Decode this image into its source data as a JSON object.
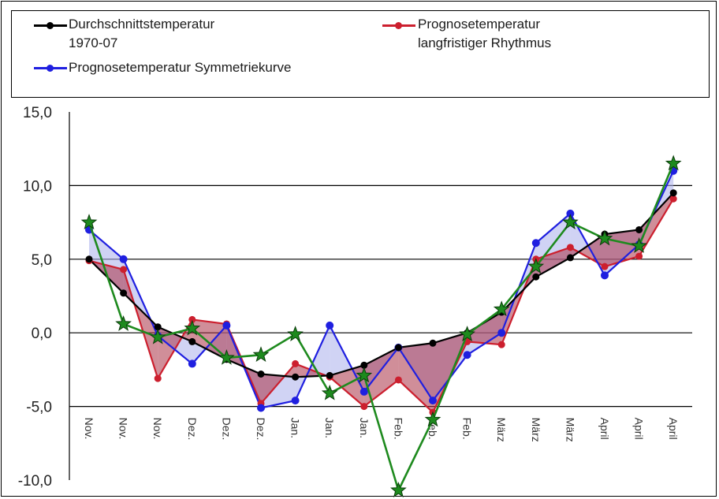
{
  "legend": {
    "items": [
      {
        "label_line1": "Durchschnittstemperatur",
        "label_line2": "1970-07",
        "color": "#000000"
      },
      {
        "label_line1": "Prognosetemperatur",
        "label_line2": "langfristiger Rhythmus",
        "color": "#cc1f2e"
      },
      {
        "label_line1": "Prognosetemperatur Symmetriekurve",
        "label_line2": "",
        "color": "#1f1fe0"
      }
    ]
  },
  "chart_data": {
    "type": "line",
    "categories": [
      "Nov.",
      "Nov.",
      "Nov.",
      "Dez.",
      "Dez.",
      "Dez.",
      "Jan.",
      "Jan.",
      "Jan.",
      "Feb.",
      "Feb.",
      "Feb.",
      "März",
      "März",
      "März",
      "April",
      "April",
      "April"
    ],
    "ylim": [
      -10,
      15
    ],
    "yticks": [
      "15,0",
      "10,0",
      "5,0",
      "0,0",
      "-5,0",
      "-10,0"
    ],
    "grid": true,
    "legend_position": "top",
    "series": [
      {
        "name": "Durchschnittstemperatur 1970-07",
        "color": "#000000",
        "values": [
          5.0,
          2.7,
          0.4,
          -0.6,
          -1.8,
          -2.8,
          -3.0,
          -2.9,
          -2.2,
          -1.0,
          -0.7,
          0.0,
          1.4,
          3.8,
          5.1,
          6.7,
          7.0,
          9.5
        ]
      },
      {
        "name": "Prognosetemperatur langfristiger Rhythmus",
        "color": "#cc1f2e",
        "values": [
          4.9,
          4.3,
          -3.1,
          0.9,
          0.6,
          -4.8,
          -2.1,
          -3.0,
          -5.0,
          -3.2,
          -5.4,
          -0.6,
          -0.8,
          5.0,
          5.8,
          4.5,
          5.2,
          9.1
        ]
      },
      {
        "name": "Prognosetemperatur Symmetriekurve",
        "color": "#1f1fe0",
        "values": [
          7.0,
          5.0,
          -0.2,
          -2.1,
          0.5,
          -5.1,
          -4.6,
          0.5,
          -4.0,
          -1.0,
          -4.6,
          -1.5,
          0.0,
          6.1,
          8.1,
          3.9,
          6.0,
          11.0
        ]
      },
      {
        "color": "#1e8a1e",
        "marker": "star",
        "values": [
          7.5,
          0.6,
          -0.3,
          0.3,
          -1.7,
          -1.5,
          -0.1,
          -4.1,
          -2.9,
          -10.7,
          -5.9,
          -0.1,
          1.6,
          4.5,
          7.5,
          6.4,
          5.9,
          11.5
        ]
      }
    ]
  }
}
